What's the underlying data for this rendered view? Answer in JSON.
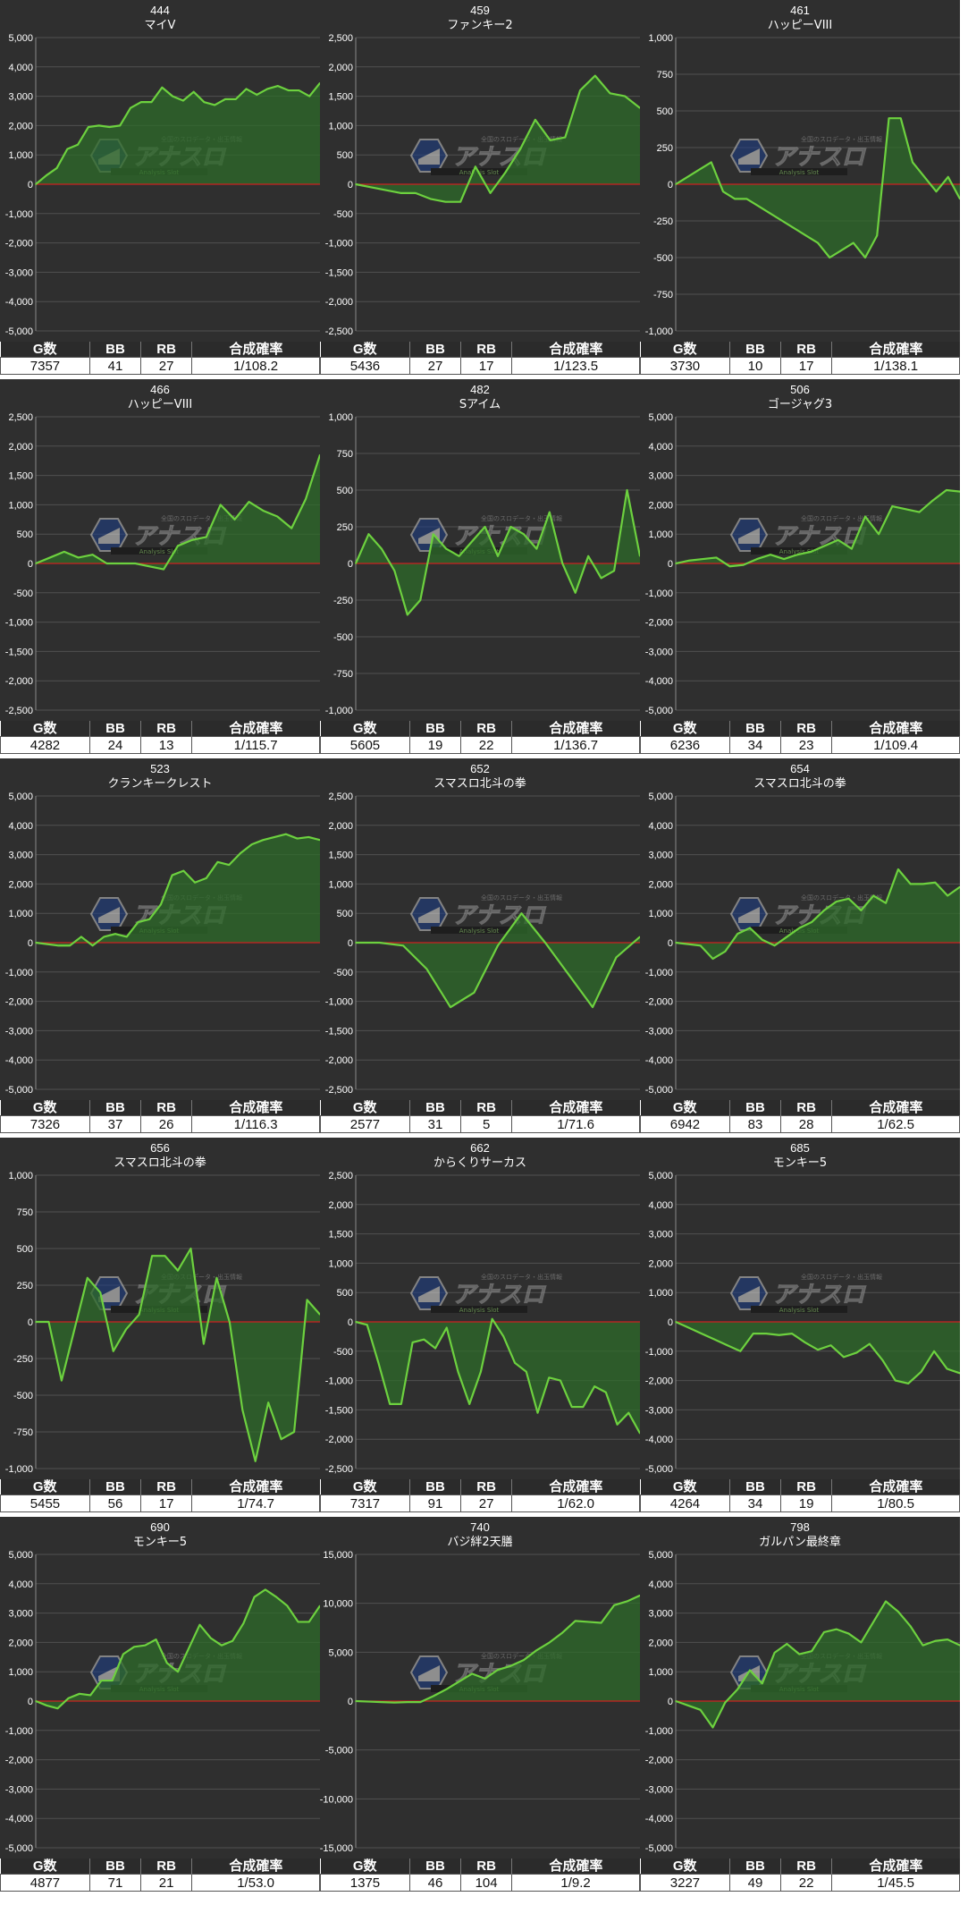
{
  "stat_headers": {
    "games": "G数",
    "bb": "BB",
    "rb": "RB",
    "prob": "合成確率"
  },
  "watermark": {
    "title": "アナスロ",
    "subtitle": "Analysis Slot",
    "tagline": "全国のスロデータ・出玉情報"
  },
  "colors": {
    "panel_bg": "#2f2f2f",
    "grid": "#505050",
    "line": "#6dd13f",
    "fill": "#2e6b2a",
    "zero_line": "#cc2222",
    "text": "#ffffff"
  },
  "chart_data": [
    {
      "type": "area",
      "title": "444",
      "subtitle": "マイV",
      "ylim": [
        -5000,
        5000
      ],
      "yticks": [
        5000,
        4000,
        3000,
        2000,
        1000,
        0,
        -1000,
        -2000,
        -3000,
        -4000,
        -5000
      ],
      "values": [
        0,
        300,
        550,
        1200,
        1350,
        1950,
        2000,
        1950,
        2000,
        2600,
        2800,
        2800,
        3300,
        3000,
        2850,
        3150,
        2800,
        2700,
        2900,
        2900,
        3250,
        3050,
        3250,
        3350,
        3200,
        3200,
        3000,
        3450
      ],
      "stats": {
        "games": "7357",
        "bb": "41",
        "rb": "27",
        "prob": "1/108.2"
      }
    },
    {
      "type": "area",
      "title": "459",
      "subtitle": "ファンキー2",
      "ylim": [
        -2500,
        2500
      ],
      "yticks": [
        2500,
        2000,
        1500,
        1000,
        500,
        0,
        -500,
        -1000,
        -1500,
        -2000,
        -2500
      ],
      "values": [
        0,
        -50,
        -100,
        -150,
        -150,
        -250,
        -300,
        -300,
        300,
        -150,
        200,
        600,
        1100,
        750,
        800,
        1600,
        1850,
        1550,
        1500,
        1300
      ],
      "stats": {
        "games": "5436",
        "bb": "27",
        "rb": "17",
        "prob": "1/123.5"
      }
    },
    {
      "type": "area",
      "title": "461",
      "subtitle": "ハッピーVIII",
      "ylim": [
        -1000,
        1000
      ],
      "yticks": [
        1000,
        750,
        500,
        250,
        0,
        -250,
        -500,
        -750,
        -1000
      ],
      "values": [
        0,
        50,
        100,
        150,
        -50,
        -100,
        -100,
        -150,
        -200,
        -250,
        -300,
        -350,
        -400,
        -500,
        -450,
        -400,
        -500,
        -350,
        450,
        450,
        150,
        50,
        -50,
        50,
        -100
      ],
      "stats": {
        "games": "3730",
        "bb": "10",
        "rb": "17",
        "prob": "1/138.1"
      }
    },
    {
      "type": "area",
      "title": "466",
      "subtitle": "ハッピーVIII",
      "ylim": [
        -2500,
        2500
      ],
      "yticks": [
        2500,
        2000,
        1500,
        1000,
        500,
        0,
        -500,
        -1000,
        -1500,
        -2000,
        -2500
      ],
      "values": [
        0,
        100,
        200,
        100,
        150,
        0,
        0,
        0,
        -50,
        -100,
        300,
        400,
        450,
        1000,
        750,
        1050,
        900,
        800,
        600,
        1100,
        1850
      ],
      "stats": {
        "games": "4282",
        "bb": "24",
        "rb": "13",
        "prob": "1/115.7"
      }
    },
    {
      "type": "area",
      "title": "482",
      "subtitle": "Sアイム",
      "ylim": [
        -1000,
        1000
      ],
      "yticks": [
        1000,
        750,
        500,
        250,
        0,
        -250,
        -500,
        -750,
        -1000
      ],
      "values": [
        0,
        200,
        100,
        -50,
        -350,
        -250,
        200,
        100,
        50,
        150,
        250,
        50,
        250,
        200,
        100,
        350,
        0,
        -200,
        50,
        -100,
        -50,
        500,
        50
      ],
      "stats": {
        "games": "5605",
        "bb": "19",
        "rb": "22",
        "prob": "1/136.7"
      }
    },
    {
      "type": "area",
      "title": "506",
      "subtitle": "ゴージャグ3",
      "ylim": [
        -5000,
        5000
      ],
      "yticks": [
        5000,
        4000,
        3000,
        2000,
        1000,
        0,
        -1000,
        -2000,
        -3000,
        -4000,
        -5000
      ],
      "values": [
        0,
        100,
        150,
        200,
        -100,
        -50,
        150,
        300,
        150,
        300,
        400,
        600,
        800,
        500,
        1600,
        1000,
        1950,
        1850,
        1750,
        2150,
        2500,
        2450
      ],
      "stats": {
        "games": "6236",
        "bb": "34",
        "rb": "23",
        "prob": "1/109.4"
      }
    },
    {
      "type": "area",
      "title": "523",
      "subtitle": "クランキークレスト",
      "ylim": [
        -5000,
        5000
      ],
      "yticks": [
        5000,
        4000,
        3000,
        2000,
        1000,
        0,
        -1000,
        -2000,
        -3000,
        -4000,
        -5000
      ],
      "values": [
        0,
        -50,
        -100,
        -100,
        200,
        -100,
        200,
        300,
        200,
        700,
        800,
        1300,
        2300,
        2450,
        2050,
        2200,
        2750,
        2650,
        3050,
        3350,
        3500,
        3600,
        3700,
        3550,
        3600,
        3500
      ],
      "stats": {
        "games": "7326",
        "bb": "37",
        "rb": "26",
        "prob": "1/116.3"
      }
    },
    {
      "type": "area",
      "title": "652",
      "subtitle": "スマスロ北斗の拳",
      "ylim": [
        -2500,
        2500
      ],
      "yticks": [
        2500,
        2000,
        1500,
        1000,
        500,
        0,
        -500,
        -1000,
        -1500,
        -2000,
        -2500
      ],
      "values": [
        0,
        0,
        -50,
        -450,
        -1100,
        -850,
        -50,
        500,
        0,
        -550,
        -1100,
        -250,
        100
      ],
      "stats": {
        "games": "2577",
        "bb": "31",
        "rb": "5",
        "prob": "1/71.6"
      }
    },
    {
      "type": "area",
      "title": "654",
      "subtitle": "スマスロ北斗の拳",
      "ylim": [
        -5000,
        5000
      ],
      "yticks": [
        5000,
        4000,
        3000,
        2000,
        1000,
        0,
        -1000,
        -2000,
        -3000,
        -4000,
        -5000
      ],
      "values": [
        0,
        -50,
        -100,
        -550,
        -300,
        300,
        500,
        100,
        -100,
        200,
        500,
        700,
        1100,
        1400,
        1500,
        1100,
        1600,
        1350,
        2500,
        2000,
        2000,
        2050,
        1600,
        1900
      ],
      "stats": {
        "games": "6942",
        "bb": "83",
        "rb": "28",
        "prob": "1/62.5"
      }
    },
    {
      "type": "area",
      "title": "656",
      "subtitle": "スマスロ北斗の拳",
      "ylim": [
        -1000,
        1000
      ],
      "yticks": [
        1000,
        750,
        500,
        250,
        0,
        -250,
        -500,
        -750,
        -1000
      ],
      "values": [
        0,
        0,
        -400,
        -50,
        300,
        200,
        -200,
        -50,
        50,
        450,
        450,
        350,
        500,
        -150,
        300,
        0,
        -600,
        -950,
        -550,
        -800,
        -750,
        150,
        50
      ],
      "stats": {
        "games": "5455",
        "bb": "56",
        "rb": "17",
        "prob": "1/74.7"
      }
    },
    {
      "type": "area",
      "title": "662",
      "subtitle": "からくりサーカス",
      "ylim": [
        -2500,
        2500
      ],
      "yticks": [
        2500,
        2000,
        1500,
        1000,
        500,
        0,
        -500,
        -1000,
        -1500,
        -2000,
        -2500
      ],
      "values": [
        0,
        -50,
        -700,
        -1400,
        -1400,
        -350,
        -300,
        -450,
        -100,
        -850,
        -1400,
        -850,
        50,
        -250,
        -700,
        -850,
        -1550,
        -950,
        -1000,
        -1450,
        -1450,
        -1100,
        -1200,
        -1750,
        -1550,
        -1900
      ],
      "stats": {
        "games": "7317",
        "bb": "91",
        "rb": "27",
        "prob": "1/62.0"
      }
    },
    {
      "type": "area",
      "title": "685",
      "subtitle": "モンキー5",
      "ylim": [
        -5000,
        5000
      ],
      "yticks": [
        5000,
        4000,
        3000,
        2000,
        1000,
        0,
        -1000,
        -2000,
        -3000,
        -4000,
        -5000
      ],
      "values": [
        0,
        -200,
        -400,
        -600,
        -800,
        -1000,
        -400,
        -400,
        -450,
        -400,
        -700,
        -950,
        -800,
        -1200,
        -1050,
        -750,
        -1300,
        -2000,
        -2100,
        -1700,
        -1000,
        -1600,
        -1750
      ],
      "stats": {
        "games": "4264",
        "bb": "34",
        "rb": "19",
        "prob": "1/80.5"
      }
    },
    {
      "type": "area",
      "title": "690",
      "subtitle": "モンキー5",
      "ylim": [
        -5000,
        5000
      ],
      "yticks": [
        5000,
        4000,
        3000,
        2000,
        1000,
        0,
        -1000,
        -2000,
        -3000,
        -4000,
        -5000
      ],
      "values": [
        0,
        -150,
        -250,
        100,
        250,
        200,
        700,
        700,
        1600,
        1850,
        1900,
        2100,
        1300,
        1000,
        1800,
        2600,
        2150,
        1900,
        2050,
        2650,
        3550,
        3800,
        3550,
        3250,
        2700,
        2700,
        3250
      ],
      "stats": {
        "games": "4877",
        "bb": "71",
        "rb": "21",
        "prob": "1/53.0"
      }
    },
    {
      "type": "area",
      "title": "740",
      "subtitle": "バジ絆2天膳",
      "ylim": [
        -15000,
        15000
      ],
      "yticks": [
        15000,
        10000,
        5000,
        0,
        -5000,
        -10000,
        -15000
      ],
      "values": [
        0,
        -50,
        -100,
        -150,
        -100,
        -100,
        500,
        1200,
        2000,
        2800,
        2300,
        3200,
        3600,
        4200,
        5200,
        6000,
        7000,
        8200,
        8100,
        8000,
        9800,
        10200,
        10800
      ],
      "stats": {
        "games": "1375",
        "bb": "46",
        "rb": "104",
        "prob": "1/9.2"
      }
    },
    {
      "type": "area",
      "title": "798",
      "subtitle": "ガルパン最終章",
      "ylim": [
        -5000,
        5000
      ],
      "yticks": [
        5000,
        4000,
        3000,
        2000,
        1000,
        0,
        -1000,
        -2000,
        -3000,
        -4000,
        -5000
      ],
      "values": [
        0,
        -150,
        -300,
        -900,
        -50,
        400,
        1050,
        600,
        1650,
        1950,
        1600,
        1700,
        2350,
        2450,
        2300,
        2000,
        2700,
        3400,
        3050,
        2550,
        1900,
        2050,
        2100,
        1900
      ],
      "stats": {
        "games": "3227",
        "bb": "49",
        "rb": "22",
        "prob": "1/45.5"
      }
    }
  ]
}
